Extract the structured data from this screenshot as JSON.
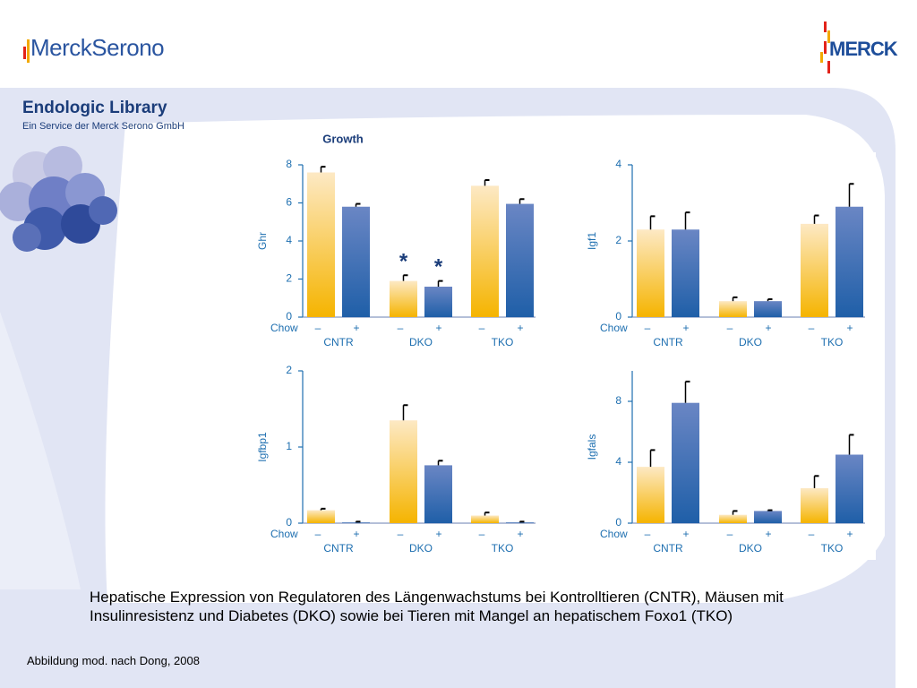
{
  "header": {
    "left_logo": "MerckSerono",
    "right_logo": "MERCK"
  },
  "library": {
    "title": "Endologic Library",
    "subtitle": "Ein Service der Merck Serono GmbH"
  },
  "figure": {
    "group_title": "Growth",
    "chow_label": "Chow",
    "chow_minus": "–",
    "chow_plus": "+"
  },
  "colors": {
    "yellow": "#f5b400",
    "blue": "#1f5fa8",
    "axis": "#1e6fb0",
    "accent": "#1b3d7a"
  },
  "chart_data": [
    {
      "type": "bar",
      "title": "Growth",
      "ylabel": "Ghr",
      "groups": [
        "CNTR",
        "DKO",
        "TKO"
      ],
      "ylim": [
        0,
        8
      ],
      "yticks": [
        0,
        2,
        4,
        6,
        8
      ],
      "series": [
        {
          "name": "Chow –",
          "values": [
            7.6,
            1.9,
            6.9
          ],
          "errors": [
            0.3,
            0.3,
            0.3
          ]
        },
        {
          "name": "Chow +",
          "values": [
            5.8,
            1.6,
            5.95
          ],
          "errors": [
            0.15,
            0.3,
            0.25
          ]
        }
      ],
      "annotations": [
        {
          "group": "DKO",
          "series": 0,
          "text": "*"
        },
        {
          "group": "DKO",
          "series": 1,
          "text": "*"
        }
      ]
    },
    {
      "type": "bar",
      "ylabel": "Igf1",
      "groups": [
        "CNTR",
        "DKO",
        "TKO"
      ],
      "ylim": [
        0,
        4
      ],
      "yticks": [
        0,
        2,
        4
      ],
      "series": [
        {
          "name": "Chow –",
          "values": [
            2.3,
            0.42,
            2.45
          ],
          "errors": [
            0.35,
            0.1,
            0.22
          ]
        },
        {
          "name": "Chow +",
          "values": [
            2.3,
            0.42,
            2.9
          ],
          "errors": [
            0.45,
            0.05,
            0.6
          ]
        }
      ]
    },
    {
      "type": "bar",
      "ylabel": "Igfbp1",
      "groups": [
        "CNTR",
        "DKO",
        "TKO"
      ],
      "ylim": [
        0,
        2
      ],
      "yticks": [
        0,
        1,
        2
      ],
      "series": [
        {
          "name": "Chow –",
          "values": [
            0.17,
            1.35,
            0.1
          ],
          "errors": [
            0.02,
            0.2,
            0.04
          ]
        },
        {
          "name": "Chow +",
          "values": [
            0.01,
            0.76,
            0.01
          ],
          "errors": [
            0.01,
            0.06,
            0.01
          ]
        }
      ]
    },
    {
      "type": "bar",
      "ylabel": "Igfals",
      "groups": [
        "CNTR",
        "DKO",
        "TKO"
      ],
      "ylim": [
        0,
        10
      ],
      "yticks": [
        0,
        4,
        8
      ],
      "series": [
        {
          "name": "Chow –",
          "values": [
            3.7,
            0.55,
            2.3
          ],
          "errors": [
            1.1,
            0.25,
            0.8
          ]
        },
        {
          "name": "Chow +",
          "values": [
            7.9,
            0.8,
            4.5
          ],
          "errors": [
            1.4,
            0.05,
            1.3
          ]
        }
      ]
    }
  ],
  "caption": "Hepatische Expression von Regulatoren des Längenwachstums bei Kontrolltieren (CNTR), Mäusen mit Insulinresistenz und Diabetes (DKO) sowie bei Tieren mit Mangel an hepatischem Foxo1 (TKO)",
  "footnote": "Abbildung mod. nach Dong, 2008"
}
